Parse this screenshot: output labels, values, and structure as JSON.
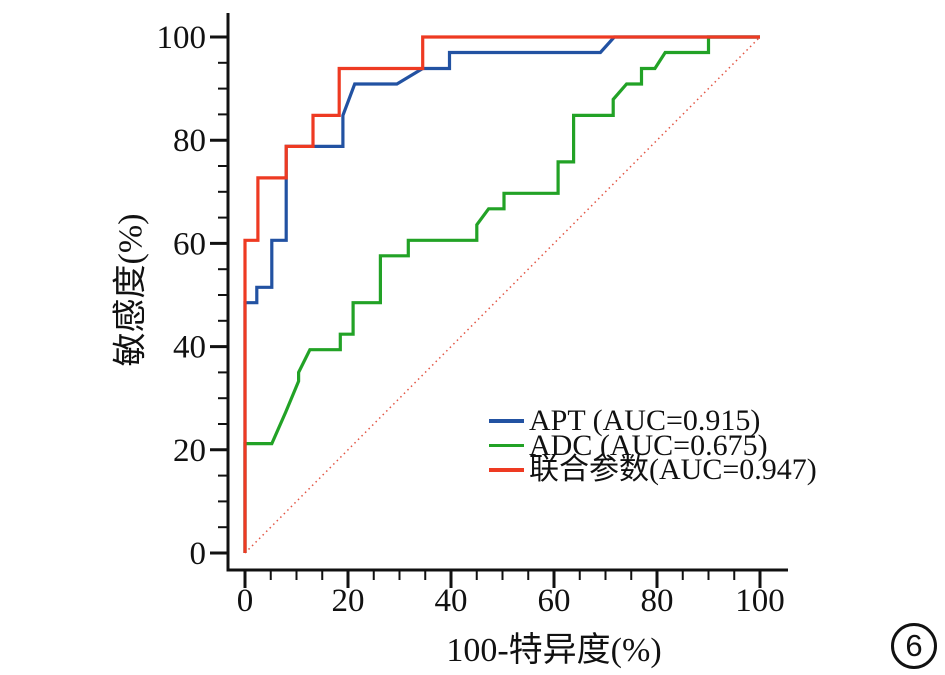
{
  "figure": {
    "badge": "6"
  },
  "chart_data": {
    "type": "line",
    "subtype": "roc-step-curves",
    "title": "",
    "xlabel": "100-特异度(%)",
    "ylabel": "敏感度(%)",
    "xlim": [
      0,
      100
    ],
    "ylim": [
      0,
      100
    ],
    "x_ticks": [
      0,
      20,
      40,
      60,
      80,
      100
    ],
    "y_ticks": [
      0,
      20,
      40,
      60,
      80,
      100
    ],
    "minor_tick_step": 5,
    "grid": false,
    "legend_position": "inside-lower-right",
    "axis_color": "#111111",
    "series": [
      {
        "id": "apt",
        "name": "APT (AUC=0.915)",
        "auc": 0.915,
        "color": "#2252a2",
        "points": [
          [
            0,
            0
          ],
          [
            0,
            48.5
          ],
          [
            2.3,
            48.5
          ],
          [
            2.3,
            51.5
          ],
          [
            5.2,
            51.5
          ],
          [
            5.2,
            60.6
          ],
          [
            8,
            60.6
          ],
          [
            8,
            78.8
          ],
          [
            19,
            78.8
          ],
          [
            19,
            84.8
          ],
          [
            21.3,
            90.9
          ],
          [
            29.5,
            90.9
          ],
          [
            34.5,
            93.9
          ],
          [
            39.7,
            93.9
          ],
          [
            39.7,
            97
          ],
          [
            69,
            97
          ],
          [
            71.7,
            100
          ],
          [
            100,
            100
          ]
        ]
      },
      {
        "id": "adc",
        "name": "ADC (AUC=0.675)",
        "auc": 0.675,
        "color": "#22a226",
        "points": [
          [
            0,
            0
          ],
          [
            0,
            21.2
          ],
          [
            5.2,
            21.2
          ],
          [
            7.9,
            27.3
          ],
          [
            10.4,
            33.3
          ],
          [
            10.4,
            35
          ],
          [
            12.6,
            39.4
          ],
          [
            18.5,
            39.4
          ],
          [
            18.5,
            42.4
          ],
          [
            21,
            42.4
          ],
          [
            21,
            48.5
          ],
          [
            26.3,
            48.5
          ],
          [
            26.3,
            57.6
          ],
          [
            31.7,
            57.6
          ],
          [
            31.7,
            60.6
          ],
          [
            45,
            60.6
          ],
          [
            45,
            63.6
          ],
          [
            47.3,
            66.7
          ],
          [
            50.3,
            66.7
          ],
          [
            50.3,
            69.7
          ],
          [
            60.8,
            69.7
          ],
          [
            60.8,
            75.8
          ],
          [
            63.8,
            75.8
          ],
          [
            63.8,
            84.8
          ],
          [
            71.5,
            84.8
          ],
          [
            71.5,
            87.9
          ],
          [
            74.1,
            90.9
          ],
          [
            77,
            90.9
          ],
          [
            77,
            93.9
          ],
          [
            79.6,
            93.9
          ],
          [
            81.6,
            97
          ],
          [
            90,
            97
          ],
          [
            90,
            100
          ],
          [
            100,
            100
          ]
        ]
      },
      {
        "id": "combined",
        "name": "联合参数(AUC=0.947)",
        "auc": 0.947,
        "color": "#ee3a22",
        "points": [
          [
            0,
            0
          ],
          [
            0,
            60.6
          ],
          [
            2.5,
            60.6
          ],
          [
            2.5,
            72.7
          ],
          [
            8,
            72.7
          ],
          [
            8,
            78.8
          ],
          [
            13.2,
            78.8
          ],
          [
            13.2,
            84.8
          ],
          [
            18.3,
            84.8
          ],
          [
            18.3,
            93.9
          ],
          [
            34.5,
            93.9
          ],
          [
            34.5,
            100
          ],
          [
            100,
            100
          ]
        ]
      }
    ],
    "reference_line": {
      "id": "chance-diagonal",
      "style": "dotted",
      "color": "#e25544",
      "points": [
        [
          0,
          0
        ],
        [
          100,
          100
        ]
      ]
    }
  }
}
